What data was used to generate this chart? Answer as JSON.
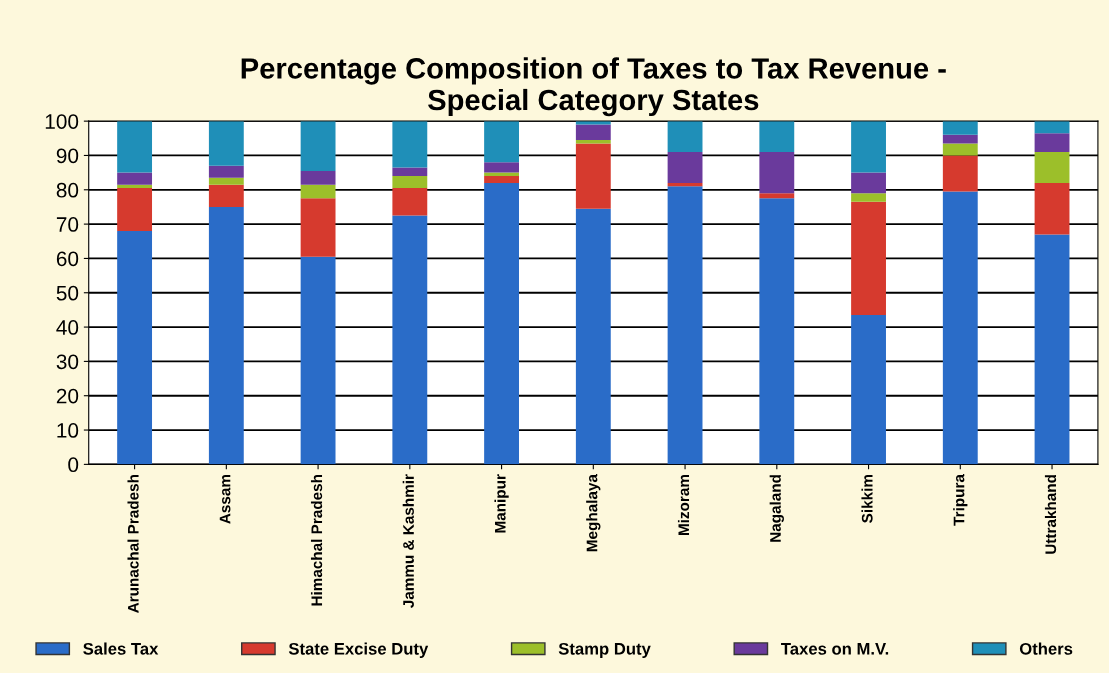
{
  "chart_data": {
    "type": "bar",
    "title": "Percentage Composition of Taxes to Tax Revenue -\nSpecial Category States",
    "stacked": true,
    "categories": [
      "Arunachal Pradesh",
      "Assam",
      "Himachal Pradesh",
      "Jammu & Kashmir",
      "Manipur",
      "Meghalaya",
      "Mizoram",
      "Nagaland",
      "Sikkim",
      "Tripura",
      "Uttrakhand"
    ],
    "series": [
      {
        "name": "Sales Tax",
        "color": "#2a6cc8",
        "values": [
          68,
          75,
          60.5,
          72.5,
          82,
          74.5,
          81,
          77.5,
          43.5,
          79.5,
          67
        ]
      },
      {
        "name": "State Excise Duty",
        "color": "#d63a2e",
        "values": [
          12.5,
          6.5,
          17,
          8,
          2,
          19,
          1,
          1.5,
          33,
          10.5,
          15
        ]
      },
      {
        "name": "Stamp Duty",
        "color": "#9cbf2a",
        "values": [
          1,
          2,
          4,
          3.5,
          1,
          1,
          0,
          0,
          2.5,
          3.5,
          9
        ]
      },
      {
        "name": "Taxes on M.V.",
        "color": "#6a3a9c",
        "values": [
          3.5,
          3.5,
          4,
          2.5,
          3,
          4.5,
          9,
          12,
          6,
          2.5,
          5.5
        ]
      },
      {
        "name": "Others",
        "color": "#1f8fb8",
        "values": [
          15,
          13,
          14.5,
          13.5,
          12,
          1,
          9,
          9,
          15,
          4,
          3.5
        ]
      }
    ],
    "ylim": [
      0,
      100
    ],
    "yticks": [
      0,
      10,
      20,
      30,
      40,
      50,
      60,
      70,
      80,
      90,
      100
    ],
    "grid": "y",
    "legend": "bottom"
  }
}
